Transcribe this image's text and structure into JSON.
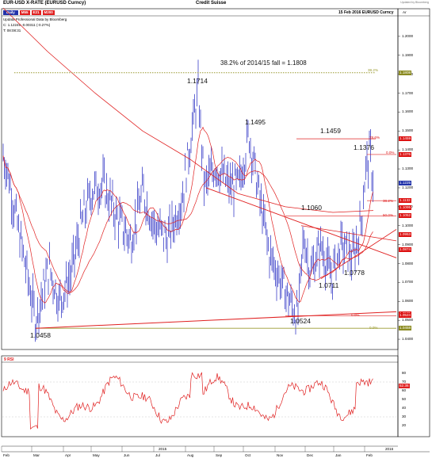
{
  "header": {
    "title": "EUR-USD X-RATE (EURUSD Curncy)",
    "source": "Credit Suisse",
    "date_label": "15 Feb 2016  EURUSD Curncy",
    "update_note": "Updated by Bloomberg"
  },
  "legend": {
    "period": "Daily",
    "ma1": "M55",
    "ma2": "E21",
    "ma3": "M200",
    "line1": "Updata Professional  Data by Bloomberg",
    "line2": "C: 1.12249  -0.00311 (-0.27%)",
    "line3": "T: 08:08:31"
  },
  "annotations": {
    "fib_38_text": "38.2% of 2014/15 fall = 1.1808",
    "fib_38_tag": "38.2%",
    "high_1714": "1.1714",
    "high_1495": "1.1495",
    "high_1459": "1.1459",
    "high_1376": "1.1376",
    "pct_786": "78.6%",
    "pct_0a": "0.0%",
    "pct_382": "38.2%",
    "pct_50": "50.0%",
    "level_1060": "1.1060",
    "level_0711": "1.0711",
    "level_0778": "1.0778",
    "level_0524": "1.0524",
    "level_0458": "1.0458",
    "pct_0b": "0.0%",
    "pct_0c": "0.0%"
  },
  "price_axis": {
    "unit_label": "Ar",
    "ticks": [
      "1.2000",
      "1.1900",
      "1.1800",
      "1.1700",
      "1.1600",
      "1.1500",
      "1.1400",
      "1.1300",
      "1.1200",
      "1.1100",
      "1.1000",
      "1.0900",
      "1.0800",
      "1.0700",
      "1.0600",
      "1.0500",
      "1.0400"
    ],
    "tags": [
      {
        "label": "1.1808",
        "color": "#8a8a20"
      },
      {
        "label": "1.1459",
        "color": "#dd1111"
      },
      {
        "label": "1.1376",
        "color": "#dd1111"
      },
      {
        "label": "1.1225",
        "color": "#2233aa"
      },
      {
        "label": "1.1132",
        "color": "#dd1111"
      },
      {
        "label": "1.1095",
        "color": "#dd1111"
      },
      {
        "label": "1.1052",
        "color": "#dd1111"
      },
      {
        "label": "1.0953",
        "color": "#dd1111"
      },
      {
        "label": "1.0874",
        "color": "#dd1111"
      },
      {
        "label": "1.0535",
        "color": "#dd1111"
      },
      {
        "label": "1.0524",
        "color": "#dd1111"
      },
      {
        "label": "1.0458",
        "color": "#8a8a20"
      }
    ]
  },
  "rsi": {
    "label": "9 RSI",
    "ticks": [
      "80",
      "70",
      "60",
      "50",
      "40",
      "30",
      "20"
    ],
    "value_tag": "52.36"
  },
  "time_axis": {
    "months": [
      "Feb",
      "Mar",
      "Apr",
      "May",
      "Jun",
      "Jul",
      "Aug",
      "Sep",
      "Oct",
      "Nov",
      "Dec",
      "Jan",
      "Feb"
    ],
    "years": [
      "2015",
      "2016"
    ]
  },
  "colors": {
    "bars": "#3b3fc8",
    "ma": "#e02020",
    "fib": "#9a9a30",
    "trend": "#e02020"
  },
  "chart_data": {
    "type": "line",
    "title": "EUR-USD X-RATE (EURUSD Curncy)",
    "xlabel": "",
    "ylabel": "",
    "ylim": [
      1.035,
      1.21
    ],
    "x": [
      "Feb",
      "Mar",
      "Apr",
      "May",
      "Jun",
      "Jul",
      "Aug",
      "Sep",
      "Oct",
      "Nov",
      "Dec",
      "Jan",
      "Feb"
    ],
    "series": [
      {
        "values": [
          1.145,
          1.058,
          1.085,
          1.112,
          1.11,
          1.1,
          1.12,
          1.12,
          1.125,
          1.075,
          1.085,
          1.084,
          1.125
        ]
      }
    ],
    "key_levels": [
      1.1808,
      1.1714,
      1.1495,
      1.1459,
      1.1376,
      1.106,
      1.0778,
      1.0711,
      1.0524,
      1.0458
    ],
    "fib_retracements": [
      "78.6%",
      "0.0%",
      "38.2%",
      "50.0%"
    ]
  }
}
